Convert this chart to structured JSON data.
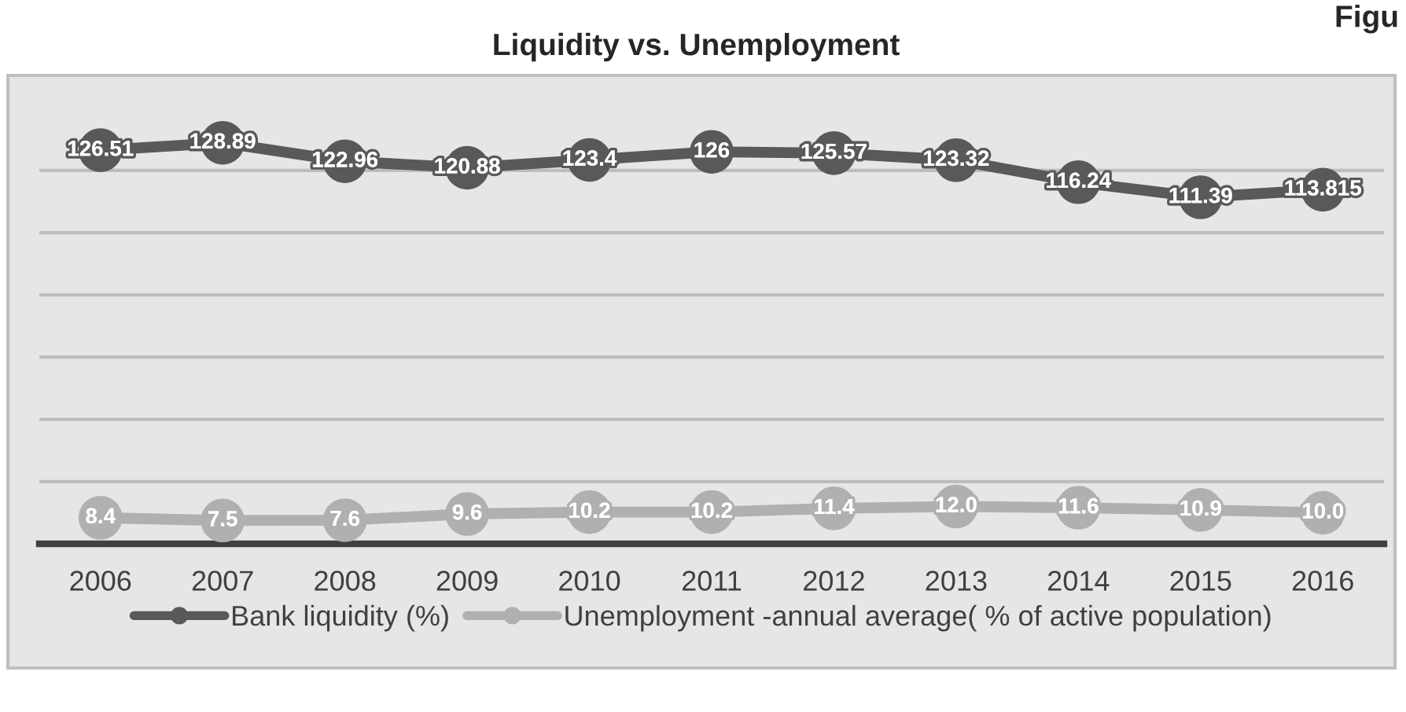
{
  "chart_data": {
    "type": "line",
    "title": "Liquidity vs. Unemployment",
    "annotations": [
      "Figu"
    ],
    "categories": [
      "2006",
      "2007",
      "2008",
      "2009",
      "2010",
      "2011",
      "2012",
      "2013",
      "2014",
      "2015",
      "2016"
    ],
    "series": [
      {
        "name": "Bank liquidity (%)",
        "color": "#595959",
        "values": [
          126.51,
          128.89,
          122.96,
          120.88,
          123.4,
          126,
          125.57,
          123.32,
          116.24,
          111.39,
          113.815
        ],
        "value_labels": [
          "126.51",
          "128.89",
          "122.96",
          "120.88",
          "123.4",
          "126",
          "125.57",
          "123.32",
          "116.24",
          "111.39",
          "113.815"
        ]
      },
      {
        "name": "Unemployment -annual average( % of active population)",
        "color": "#b0b0b0",
        "values": [
          8.4,
          7.5,
          7.6,
          9.6,
          10.2,
          10.2,
          11.4,
          12.0,
          11.6,
          10.9,
          10.0
        ],
        "value_labels": [
          "8.4",
          "7.5",
          "7.6",
          "9.6",
          "10.2",
          "10.2",
          "11.4",
          "12.0",
          "11.6",
          "10.9",
          "10.0"
        ]
      }
    ],
    "grid": "y",
    "legend": "bottom",
    "marker": "circle",
    "line_style": "solid",
    "tick_labels": "x"
  }
}
